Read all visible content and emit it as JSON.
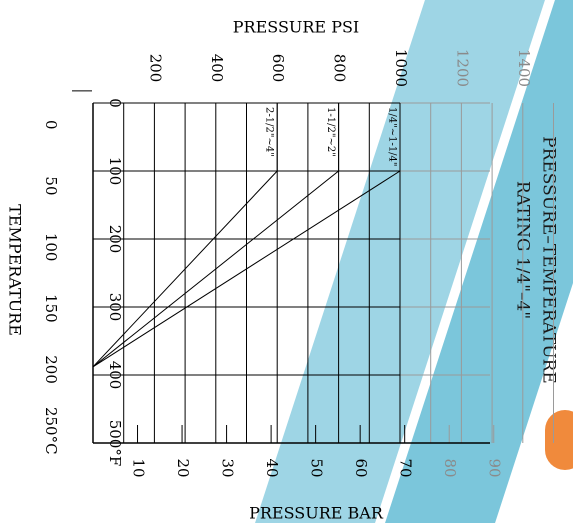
{
  "watermark": {
    "color": "#4fb3cf",
    "accent": "#f08a3c"
  },
  "colors": {
    "grid": "#000000",
    "grid_light": "#9a9a9a",
    "text": "#000000",
    "text_light": "#8a8a8a",
    "title": "#1a1a1a"
  },
  "chart_data": {
    "type": "line",
    "title": "PRESSURE–TEMPERATURE",
    "subtitle": "RATING   1/4\"–4\"",
    "orientation": "rotated 90° clockwise",
    "axes": {
      "pressure_psi": {
        "label": "PRESSURE  PSI",
        "ticks": [
          200,
          400,
          600,
          800,
          1000,
          1200,
          1400
        ],
        "range": [
          0,
          1500
        ]
      },
      "pressure_bar": {
        "label": "PRESSURE  BAR",
        "ticks": [
          10,
          20,
          30,
          40,
          50,
          60,
          70,
          80,
          90
        ],
        "range": [
          0,
          100
        ]
      },
      "temperature_f": {
        "ticks": [
          "0",
          "100",
          "200",
          "300",
          "400",
          "500°F"
        ],
        "range": [
          0,
          500
        ]
      },
      "temperature_c": {
        "label": "TEMPERATURE",
        "ticks": [
          "0",
          "50",
          "100",
          "150",
          "200",
          "250°C"
        ],
        "range": [
          -17.8,
          260
        ]
      }
    },
    "grid": true,
    "series": [
      {
        "name": "1/4\"~1-1/4\"",
        "x_temp_f": [
          0,
          100,
          388
        ],
        "y_psi": [
          1000,
          1000,
          0
        ]
      },
      {
        "name": "1-1/2\"~2\"",
        "x_temp_f": [
          0,
          100,
          388
        ],
        "y_psi": [
          800,
          800,
          0
        ]
      },
      {
        "name": "2-1/2\"~4\"",
        "x_temp_f": [
          0,
          100,
          388
        ],
        "y_psi": [
          600,
          600,
          0
        ]
      }
    ]
  }
}
